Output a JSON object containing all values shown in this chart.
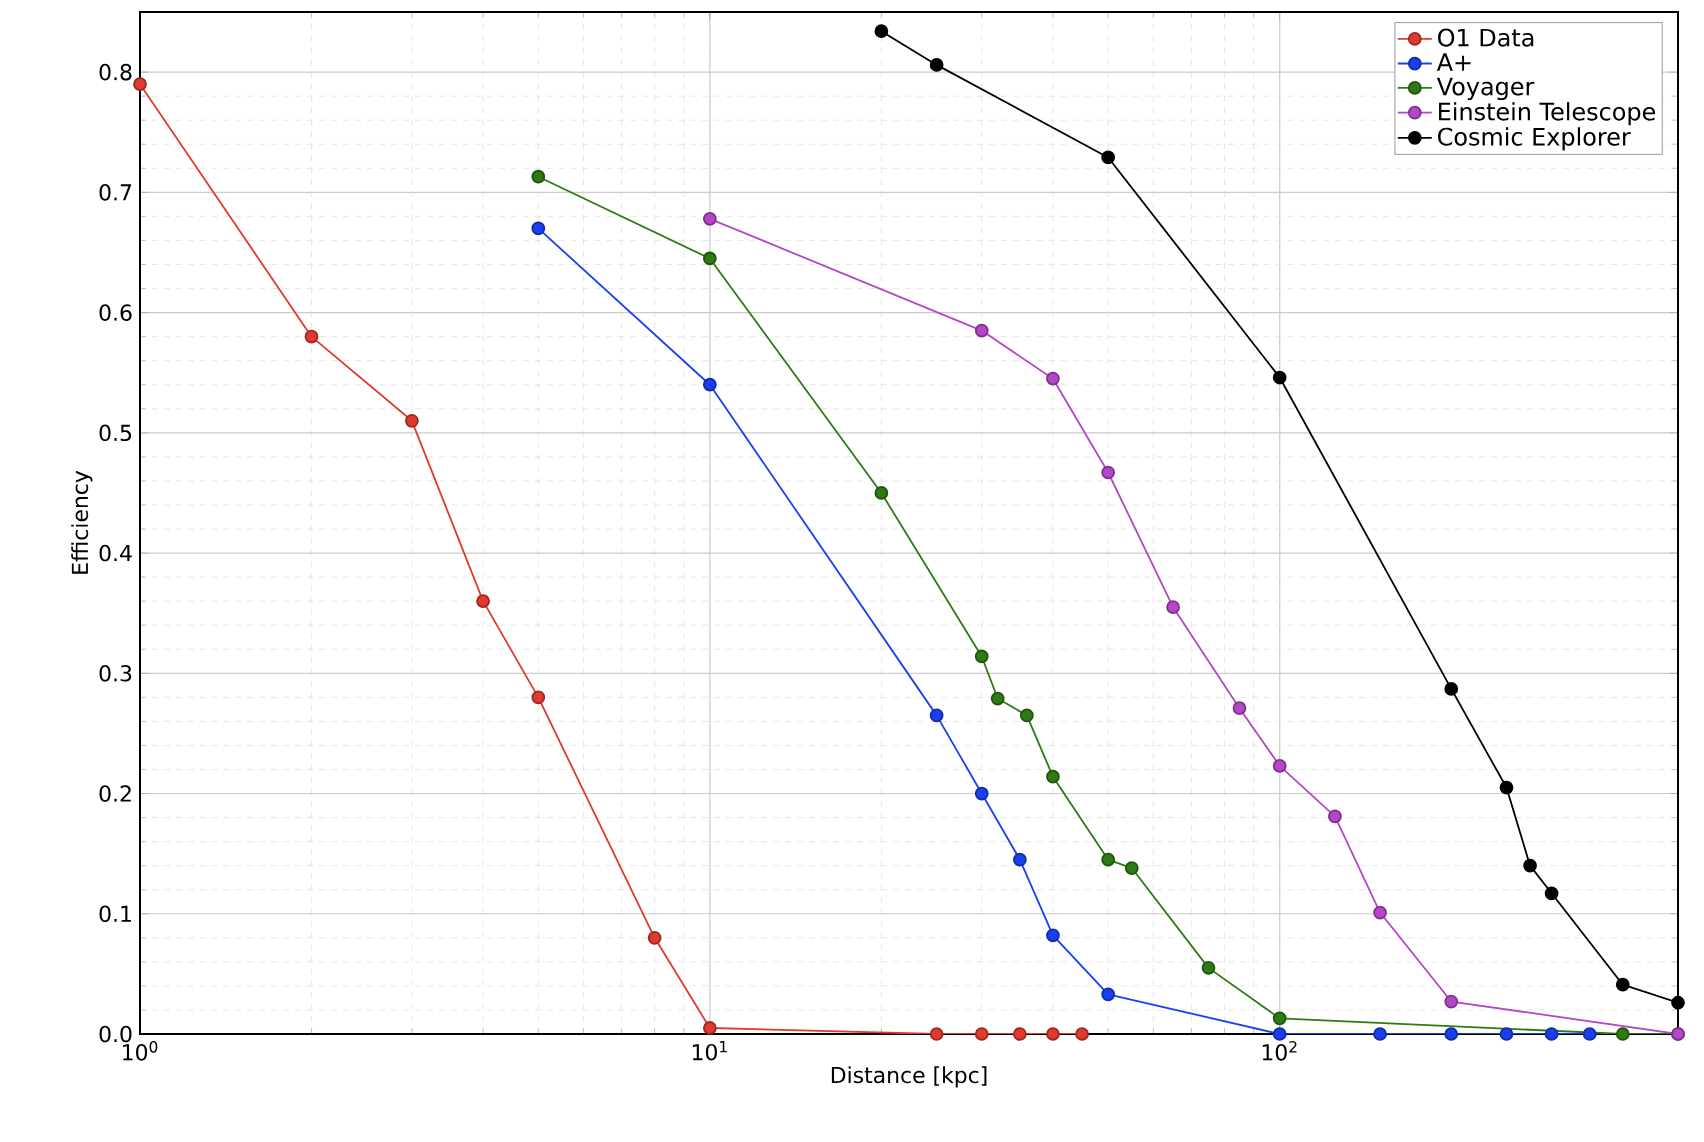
{
  "chart_data": {
    "type": "line",
    "xlabel": "Distance [kpc]",
    "ylabel": "Efficiency",
    "log": "x",
    "xlim": [
      1,
      500
    ],
    "ylim": [
      0,
      0.85
    ],
    "xticks": [
      {
        "value": 1,
        "label": "10$^{0}$"
      },
      {
        "value": 10,
        "label": "10$^{1}$"
      },
      {
        "value": 100,
        "label": "10$^{2}$"
      }
    ],
    "yticks": [
      {
        "value": 0,
        "label": "0.0"
      },
      0.1,
      0.2,
      0.3,
      0.4,
      0.5,
      0.6,
      0.7,
      0.8
    ],
    "grid": true,
    "legend": "top right",
    "marker": "circle",
    "line_style": "solid",
    "series": [
      {
        "name": "O1 Data",
        "color": "#e0392f",
        "x": [
          1,
          2,
          3,
          4,
          5,
          8,
          10,
          25,
          30,
          35,
          40,
          45
        ],
        "values": [
          0.79,
          0.58,
          0.51,
          0.36,
          0.28,
          0.08,
          0.005,
          0,
          0,
          0,
          0,
          0
        ]
      },
      {
        "name": "A+",
        "color": "#1a3ff0",
        "x": [
          5,
          10,
          25,
          30,
          35,
          40,
          50,
          100,
          150,
          200,
          250,
          300,
          350
        ],
        "values": [
          0.67,
          0.54,
          0.265,
          0.2,
          0.145,
          0.082,
          0.033,
          0,
          0,
          0,
          0,
          0,
          0
        ]
      },
      {
        "name": "Voyager",
        "color": "#2e7a14",
        "x": [
          5,
          10,
          20,
          30,
          32,
          36,
          40,
          50,
          55,
          75,
          100,
          400,
          500
        ],
        "values": [
          0.713,
          0.645,
          0.45,
          0.314,
          0.279,
          0.265,
          0.214,
          0.145,
          0.138,
          0.055,
          0.013,
          0,
          0
        ]
      },
      {
        "name": "Einstein Telescope",
        "color": "#b446c8",
        "x": [
          10,
          30,
          40,
          50,
          65,
          85,
          100,
          125,
          150,
          200,
          500
        ],
        "values": [
          0.678,
          0.585,
          0.545,
          0.467,
          0.355,
          0.271,
          0.223,
          0.181,
          0.101,
          0.027,
          0
        ]
      },
      {
        "name": "Cosmic Explorer",
        "color": "#000000",
        "x": [
          20,
          25,
          50,
          100,
          200,
          250,
          275,
          300,
          400,
          500
        ],
        "values": [
          0.834,
          0.806,
          0.729,
          0.546,
          0.287,
          0.205,
          0.14,
          0.117,
          0.041,
          0.026
        ]
      }
    ]
  }
}
